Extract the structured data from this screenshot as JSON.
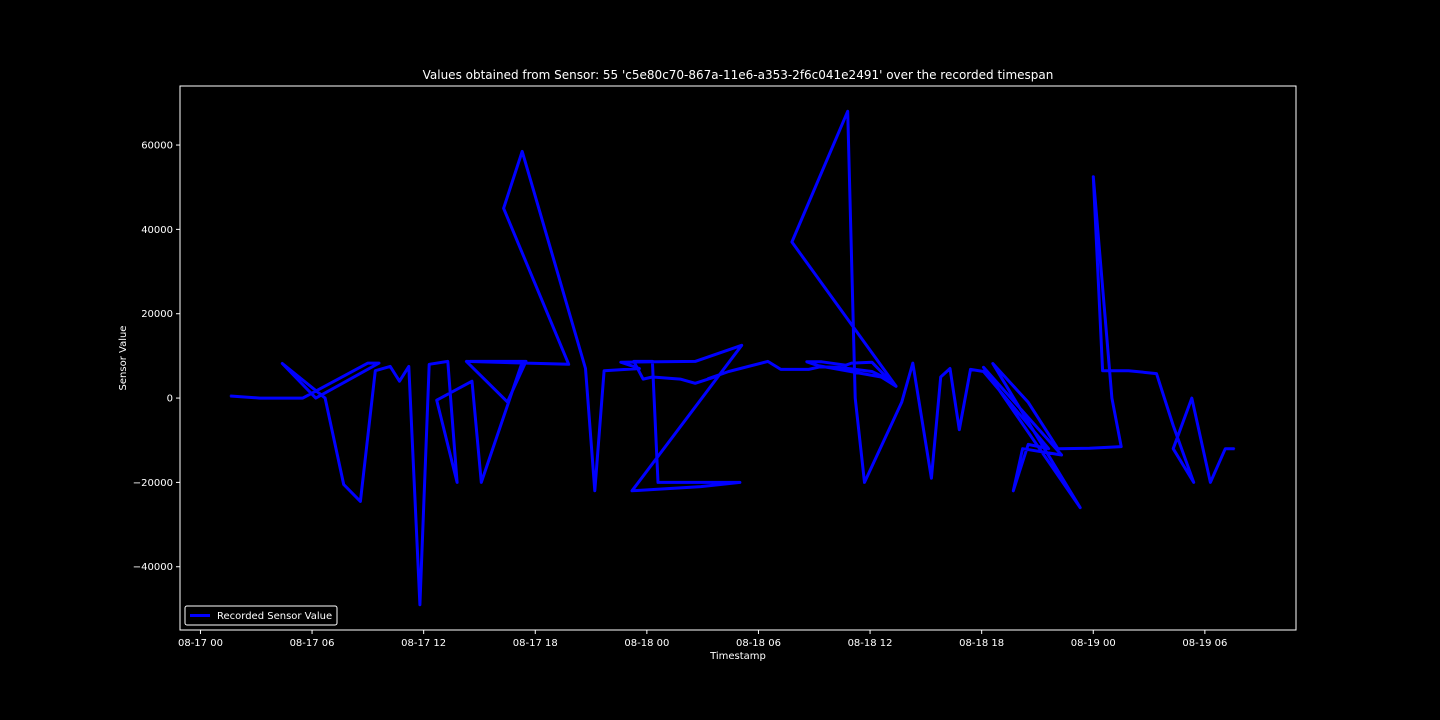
{
  "chart_data": {
    "type": "line",
    "title": "Values obtained from Sensor: 55 'c5e80c70-867a-11e6-a353-2f6c041e2491' over the recorded timespan",
    "xlabel": "Timestamp",
    "ylabel": "Sensor Value",
    "x_ticks": [
      "08-17 00",
      "08-17 06",
      "08-17 12",
      "08-17 18",
      "08-18 00",
      "08-18 06",
      "08-18 12",
      "08-18 18",
      "08-19 00",
      "08-19 06"
    ],
    "x_tick_hours": [
      0,
      6,
      12,
      18,
      24,
      30,
      36,
      42,
      48,
      54
    ],
    "y_ticks": [
      -40000,
      -20000,
      0,
      20000,
      40000,
      60000
    ],
    "xlim_hours": [
      -1.1,
      58.9
    ],
    "ylim": [
      -55000,
      74000
    ],
    "grid": false,
    "legend": {
      "location": "lower-left",
      "label": "Recorded Sensor Value"
    },
    "colors": {
      "background": "#000000",
      "axes": "#ffffff",
      "line": "#0000ff"
    },
    "x_unit": "hours since 08-17 00",
    "series": [
      {
        "name": "Recorded Sensor Value",
        "color": "#0000ff",
        "points": [
          [
            1.6,
            500
          ],
          [
            3.2,
            0
          ],
          [
            5.5,
            0
          ],
          [
            9.0,
            8300
          ],
          [
            9.6,
            8300
          ],
          [
            6.2,
            0
          ],
          [
            4.4,
            8200
          ],
          [
            6.7,
            0
          ],
          [
            7.7,
            -20500
          ],
          [
            8.6,
            -24500
          ],
          [
            9.4,
            6500
          ],
          [
            10.2,
            7500
          ],
          [
            10.7,
            4000
          ],
          [
            11.2,
            7500
          ],
          [
            11.8,
            -49000
          ],
          [
            12.3,
            8000
          ],
          [
            13.3,
            8700
          ],
          [
            13.8,
            -20000
          ],
          [
            12.7,
            -500
          ],
          [
            14.6,
            4000
          ],
          [
            15.1,
            -20000
          ],
          [
            17.3,
            8500
          ],
          [
            14.5,
            8700
          ],
          [
            17.5,
            8700
          ],
          [
            16.5,
            -900
          ],
          [
            14.3,
            8700
          ],
          [
            19.8,
            8000
          ],
          [
            16.3,
            45000
          ],
          [
            17.3,
            58500
          ],
          [
            20.7,
            7000
          ],
          [
            21.2,
            -22000
          ],
          [
            21.7,
            6500
          ],
          [
            23.6,
            7000
          ],
          [
            22.6,
            8500
          ],
          [
            26.6,
            8700
          ],
          [
            29.1,
            12500
          ],
          [
            23.2,
            -22000
          ],
          [
            26.9,
            -21000
          ],
          [
            29.0,
            -20000
          ],
          [
            24.6,
            -20000
          ],
          [
            24.3,
            8700
          ],
          [
            23.3,
            8700
          ],
          [
            23.8,
            4500
          ],
          [
            24.3,
            5000
          ],
          [
            25.8,
            4500
          ],
          [
            26.6,
            3500
          ],
          [
            27.8,
            5200
          ],
          [
            27.3,
            4600
          ],
          [
            28.4,
            6300
          ],
          [
            30.5,
            8700
          ],
          [
            31.2,
            6800
          ],
          [
            32.7,
            6800
          ],
          [
            33.3,
            7400
          ],
          [
            34.3,
            7300
          ],
          [
            36.1,
            6300
          ],
          [
            37.0,
            4400
          ],
          [
            36.1,
            8500
          ],
          [
            35.0,
            8300
          ],
          [
            34.7,
            7800
          ],
          [
            33.4,
            8600
          ],
          [
            32.6,
            8600
          ],
          [
            33.2,
            7700
          ],
          [
            36.6,
            5000
          ],
          [
            37.4,
            2800
          ],
          [
            31.8,
            37000
          ],
          [
            34.8,
            68000
          ],
          [
            35.2,
            0
          ],
          [
            35.7,
            -20000
          ],
          [
            37.7,
            -1000
          ],
          [
            38.3,
            8300
          ],
          [
            39.3,
            -19000
          ],
          [
            39.8,
            5000
          ],
          [
            40.3,
            7000
          ],
          [
            40.8,
            -7500
          ],
          [
            41.4,
            6800
          ],
          [
            42.1,
            6300
          ],
          [
            45.6,
            -12000
          ],
          [
            44.5,
            -11000
          ],
          [
            43.7,
            -22000
          ],
          [
            44.2,
            -12000
          ],
          [
            46.3,
            -13500
          ],
          [
            42.1,
            7300
          ],
          [
            47.3,
            -26000
          ],
          [
            42.6,
            8200
          ],
          [
            44.5,
            -1000
          ],
          [
            46.1,
            -12000
          ],
          [
            47.8,
            -11900
          ],
          [
            49.5,
            -11500
          ],
          [
            49.0,
            0
          ],
          [
            48.0,
            52500
          ],
          [
            48.5,
            6500
          ],
          [
            49.9,
            6500
          ],
          [
            51.4,
            5800
          ],
          [
            52.3,
            -6500
          ],
          [
            53.4,
            -20000
          ],
          [
            52.3,
            -12000
          ],
          [
            53.3,
            0
          ],
          [
            54.3,
            -20000
          ],
          [
            55.1,
            -12000
          ],
          [
            55.6,
            -12000
          ]
        ]
      }
    ]
  }
}
